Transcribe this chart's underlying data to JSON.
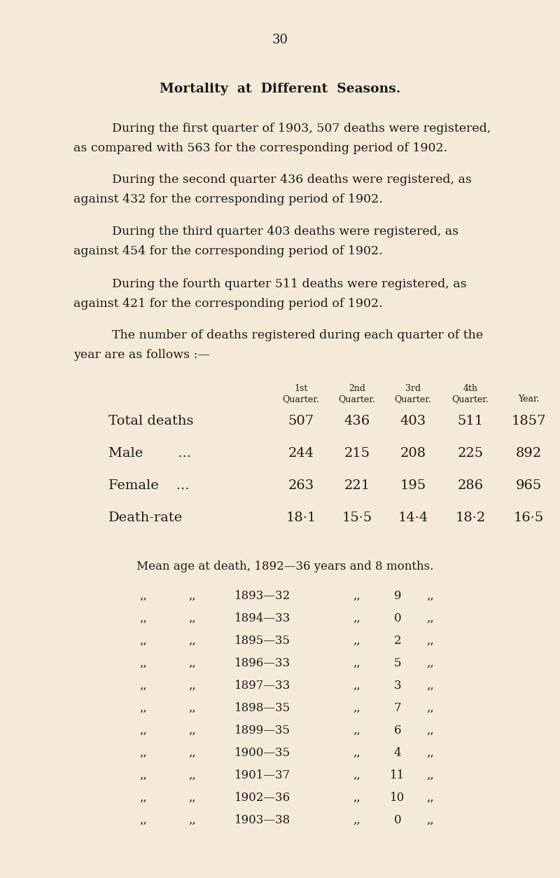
{
  "page_number": "30",
  "title": "Mortality  at  Different  Seasons.",
  "bg_color": "#f5ead8",
  "text_color": "#1a1a1a",
  "paragraphs": [
    [
      "During the first quarter of 1903, 507 deaths were registered,",
      "as compared with 563 for the corresponding period of 1902."
    ],
    [
      "During the second quarter 436 deaths were registered, as",
      "against 432 for the corresponding period of 1902."
    ],
    [
      "During the third quarter 403 deaths were registered, as",
      "against 454 for the corresponding period of 1902."
    ],
    [
      "During the fourth quarter 511 deaths were registered, as",
      "against 421 for the corresponding period of 1902."
    ],
    [
      "The number of deaths registered during each quarter of the",
      "year are as follows :—"
    ]
  ],
  "table_col_headers_top": [
    "1st",
    "2nd",
    "3rd",
    "4th",
    ""
  ],
  "table_col_headers_bot": [
    "Quarter.",
    "Quarter.",
    "Quarter.",
    "Quarter.",
    "Year."
  ],
  "table_rows": [
    [
      "Total deaths",
      "507",
      "436",
      "403",
      "511",
      "1857"
    ],
    [
      "Male        ...",
      "244",
      "215",
      "208",
      "225",
      "892"
    ],
    [
      "Female    ...",
      "263",
      "221",
      "195",
      "286",
      "965"
    ],
    [
      "Death-rate",
      "18·1",
      "15·5",
      "14·4",
      "18·2",
      "16·5"
    ]
  ],
  "mean_age_line": "Mean age at death, 1892—36 years and 8 months.",
  "mean_age_rows": [
    [
      "1893—32",
      "9"
    ],
    [
      "1894—33",
      "0"
    ],
    [
      "1895—35",
      "2"
    ],
    [
      "1896—33",
      "5"
    ],
    [
      "1897—33",
      "3"
    ],
    [
      "1898—35",
      "7"
    ],
    [
      "1899—35",
      "6"
    ],
    [
      "1900—35",
      "4"
    ],
    [
      "1901—37",
      "11"
    ],
    [
      "1902—36",
      "10"
    ],
    [
      "1903—38",
      "0"
    ]
  ]
}
